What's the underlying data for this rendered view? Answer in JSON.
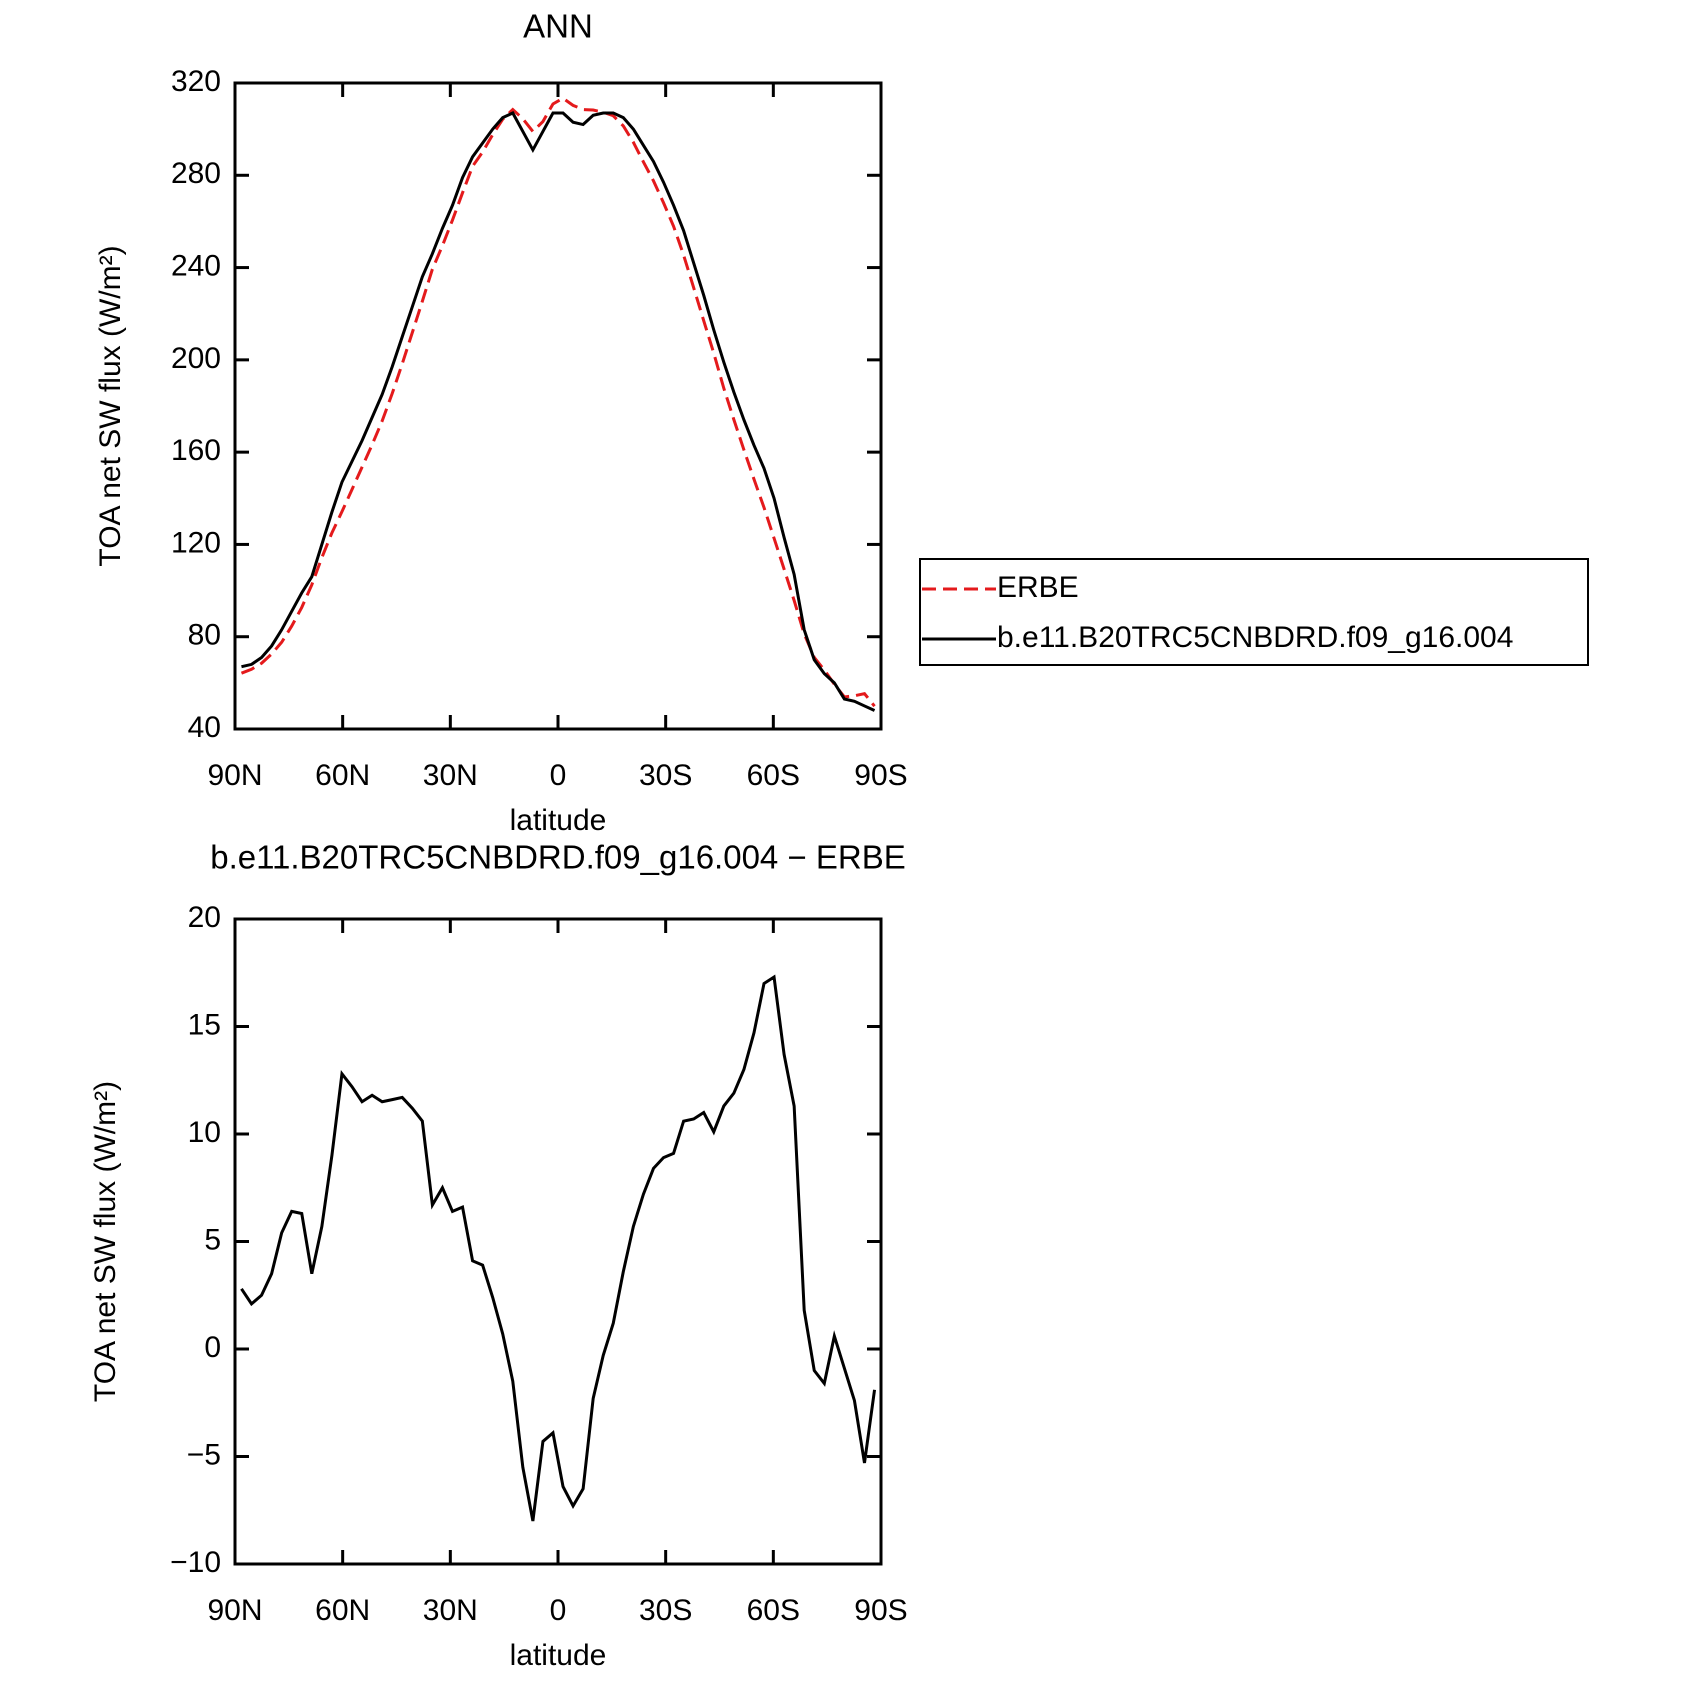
{
  "chart_data": [
    {
      "type": "line",
      "title": "ANN",
      "xlabel": "latitude",
      "ylabel": "TOA net SW flux (W/m²)",
      "x": [
        88.2,
        85.4,
        82.6,
        79.8,
        77,
        74.2,
        71.4,
        68.6,
        65.8,
        63,
        60.2,
        57.4,
        54.6,
        51.8,
        49,
        46.2,
        43.4,
        40.6,
        37.8,
        35,
        32.2,
        29.4,
        26.6,
        23.8,
        21,
        18.2,
        15.4,
        12.6,
        9.8,
        7,
        4.2,
        1.4,
        -1.4,
        -4.2,
        -7,
        -9.8,
        -12.6,
        -15.4,
        -18.2,
        -21,
        -23.8,
        -26.6,
        -29.4,
        -32.2,
        -35,
        -37.8,
        -40.6,
        -43.4,
        -46.2,
        -49,
        -51.8,
        -54.6,
        -57.4,
        -60.2,
        -63,
        -65.8,
        -68.6,
        -71.4,
        -74.2,
        -77,
        -79.8,
        -82.6,
        -85.4,
        -88.2
      ],
      "series": [
        {
          "name": "ERBE",
          "color": "#e41a1c",
          "line_style": "dashed",
          "values": [
            64.2,
            65.9,
            68.5,
            72.5,
            77.6,
            84.6,
            92.7,
            102.5,
            114.3,
            125,
            134.2,
            143.8,
            153.5,
            163.2,
            173.5,
            185.4,
            198.3,
            211.8,
            225.4,
            239.3,
            249.5,
            260.6,
            272.4,
            283.9,
            290.1,
            297.6,
            304.3,
            308.5,
            304.5,
            299,
            303.3,
            310.9,
            313.4,
            310.3,
            308.5,
            308.3,
            307.3,
            305.8,
            301.4,
            294.3,
            285.8,
            277.6,
            268.1,
            257.9,
            245.4,
            231.3,
            217,
            202.9,
            187.7,
            174.1,
            161,
            148.3,
            136,
            122.7,
            109.3,
            95.7,
            81.2,
            71,
            65.6,
            59.4,
            53.9,
            54.4,
            55.3,
            49.9
          ]
        },
        {
          "name": "b.e11.B20TRC5CNBDRD.f09_g16.004",
          "color": "#000000",
          "line_style": "solid",
          "values": [
            67,
            68,
            71,
            76,
            83,
            91,
            99,
            106,
            120,
            134,
            147,
            156,
            165,
            175,
            185,
            197,
            210,
            223,
            236,
            246,
            257,
            267,
            279,
            288,
            294,
            300,
            305,
            307,
            299,
            291,
            299,
            307,
            307,
            303,
            302,
            306,
            307,
            307,
            305,
            300,
            293,
            286,
            277,
            267,
            256,
            242,
            228,
            213,
            199,
            186,
            174,
            163,
            153,
            140,
            123,
            107,
            83,
            70,
            64,
            60,
            53,
            52,
            50,
            48
          ]
        }
      ],
      "xlim": [
        90,
        -90
      ],
      "xticks": [
        {
          "value": 90,
          "label": "90N"
        },
        {
          "value": 60,
          "label": "60N"
        },
        {
          "value": 30,
          "label": "30N"
        },
        0,
        {
          "value": -30,
          "label": "30S"
        },
        {
          "value": -60,
          "label": "60S"
        },
        {
          "value": -90,
          "label": "90S"
        }
      ],
      "ylim": [
        40,
        320
      ],
      "yticks": [
        40,
        80,
        120,
        160,
        200,
        240,
        280,
        320
      ],
      "legend": "outside right"
    },
    {
      "type": "line",
      "title": "b.e11.B20TRC5CNBDRD.f09_g16.004 − ERBE",
      "xlabel": "latitude",
      "ylabel": "TOA net SW flux (W/m²)",
      "x": [
        88.2,
        85.4,
        82.6,
        79.8,
        77,
        74.2,
        71.4,
        68.6,
        65.8,
        63,
        60.2,
        57.4,
        54.6,
        51.8,
        49,
        46.2,
        43.4,
        40.6,
        37.8,
        35,
        32.2,
        29.4,
        26.6,
        23.8,
        21,
        18.2,
        15.4,
        12.6,
        9.8,
        7,
        4.2,
        1.4,
        -1.4,
        -4.2,
        -7,
        -9.8,
        -12.6,
        -15.4,
        -18.2,
        -21,
        -23.8,
        -26.6,
        -29.4,
        -32.2,
        -35,
        -37.8,
        -40.6,
        -43.4,
        -46.2,
        -49,
        -51.8,
        -54.6,
        -57.4,
        -60.2,
        -63,
        -65.8,
        -68.6,
        -71.4,
        -74.2,
        -77,
        -79.8,
        -82.6,
        -85.4,
        -88.2
      ],
      "series": [
        {
          "color": "#000000",
          "line_style": "solid",
          "values": [
            2.8,
            2.1,
            2.5,
            3.5,
            5.4,
            6.4,
            6.3,
            3.5,
            5.7,
            9,
            12.8,
            12.2,
            11.5,
            11.8,
            11.5,
            11.6,
            11.7,
            11.2,
            10.6,
            6.7,
            7.5,
            6.4,
            6.6,
            4.1,
            3.9,
            2.4,
            0.7,
            -1.5,
            -5.5,
            -8,
            -4.3,
            -3.9,
            -6.4,
            -7.3,
            -6.5,
            -2.3,
            -0.3,
            1.2,
            3.6,
            5.7,
            7.2,
            8.4,
            8.9,
            9.1,
            10.6,
            10.7,
            11,
            10.1,
            11.3,
            11.9,
            13,
            14.7,
            17,
            17.3,
            13.7,
            11.3,
            1.8,
            -1,
            -1.6,
            0.6,
            -0.9,
            -2.4,
            -5.3,
            -1.9
          ]
        }
      ],
      "xlim": [
        90,
        -90
      ],
      "xticks": [
        {
          "value": 90,
          "label": "90N"
        },
        {
          "value": 60,
          "label": "60N"
        },
        {
          "value": 30,
          "label": "30N"
        },
        0,
        {
          "value": -30,
          "label": "30S"
        },
        {
          "value": -60,
          "label": "60S"
        },
        {
          "value": -90,
          "label": "90S"
        }
      ],
      "ylim": [
        -10,
        20
      ],
      "yticks": [
        {
          "value": -10,
          "label": "−10"
        },
        {
          "value": -5,
          "label": "−5"
        },
        0,
        5,
        10,
        15,
        20
      ]
    }
  ]
}
